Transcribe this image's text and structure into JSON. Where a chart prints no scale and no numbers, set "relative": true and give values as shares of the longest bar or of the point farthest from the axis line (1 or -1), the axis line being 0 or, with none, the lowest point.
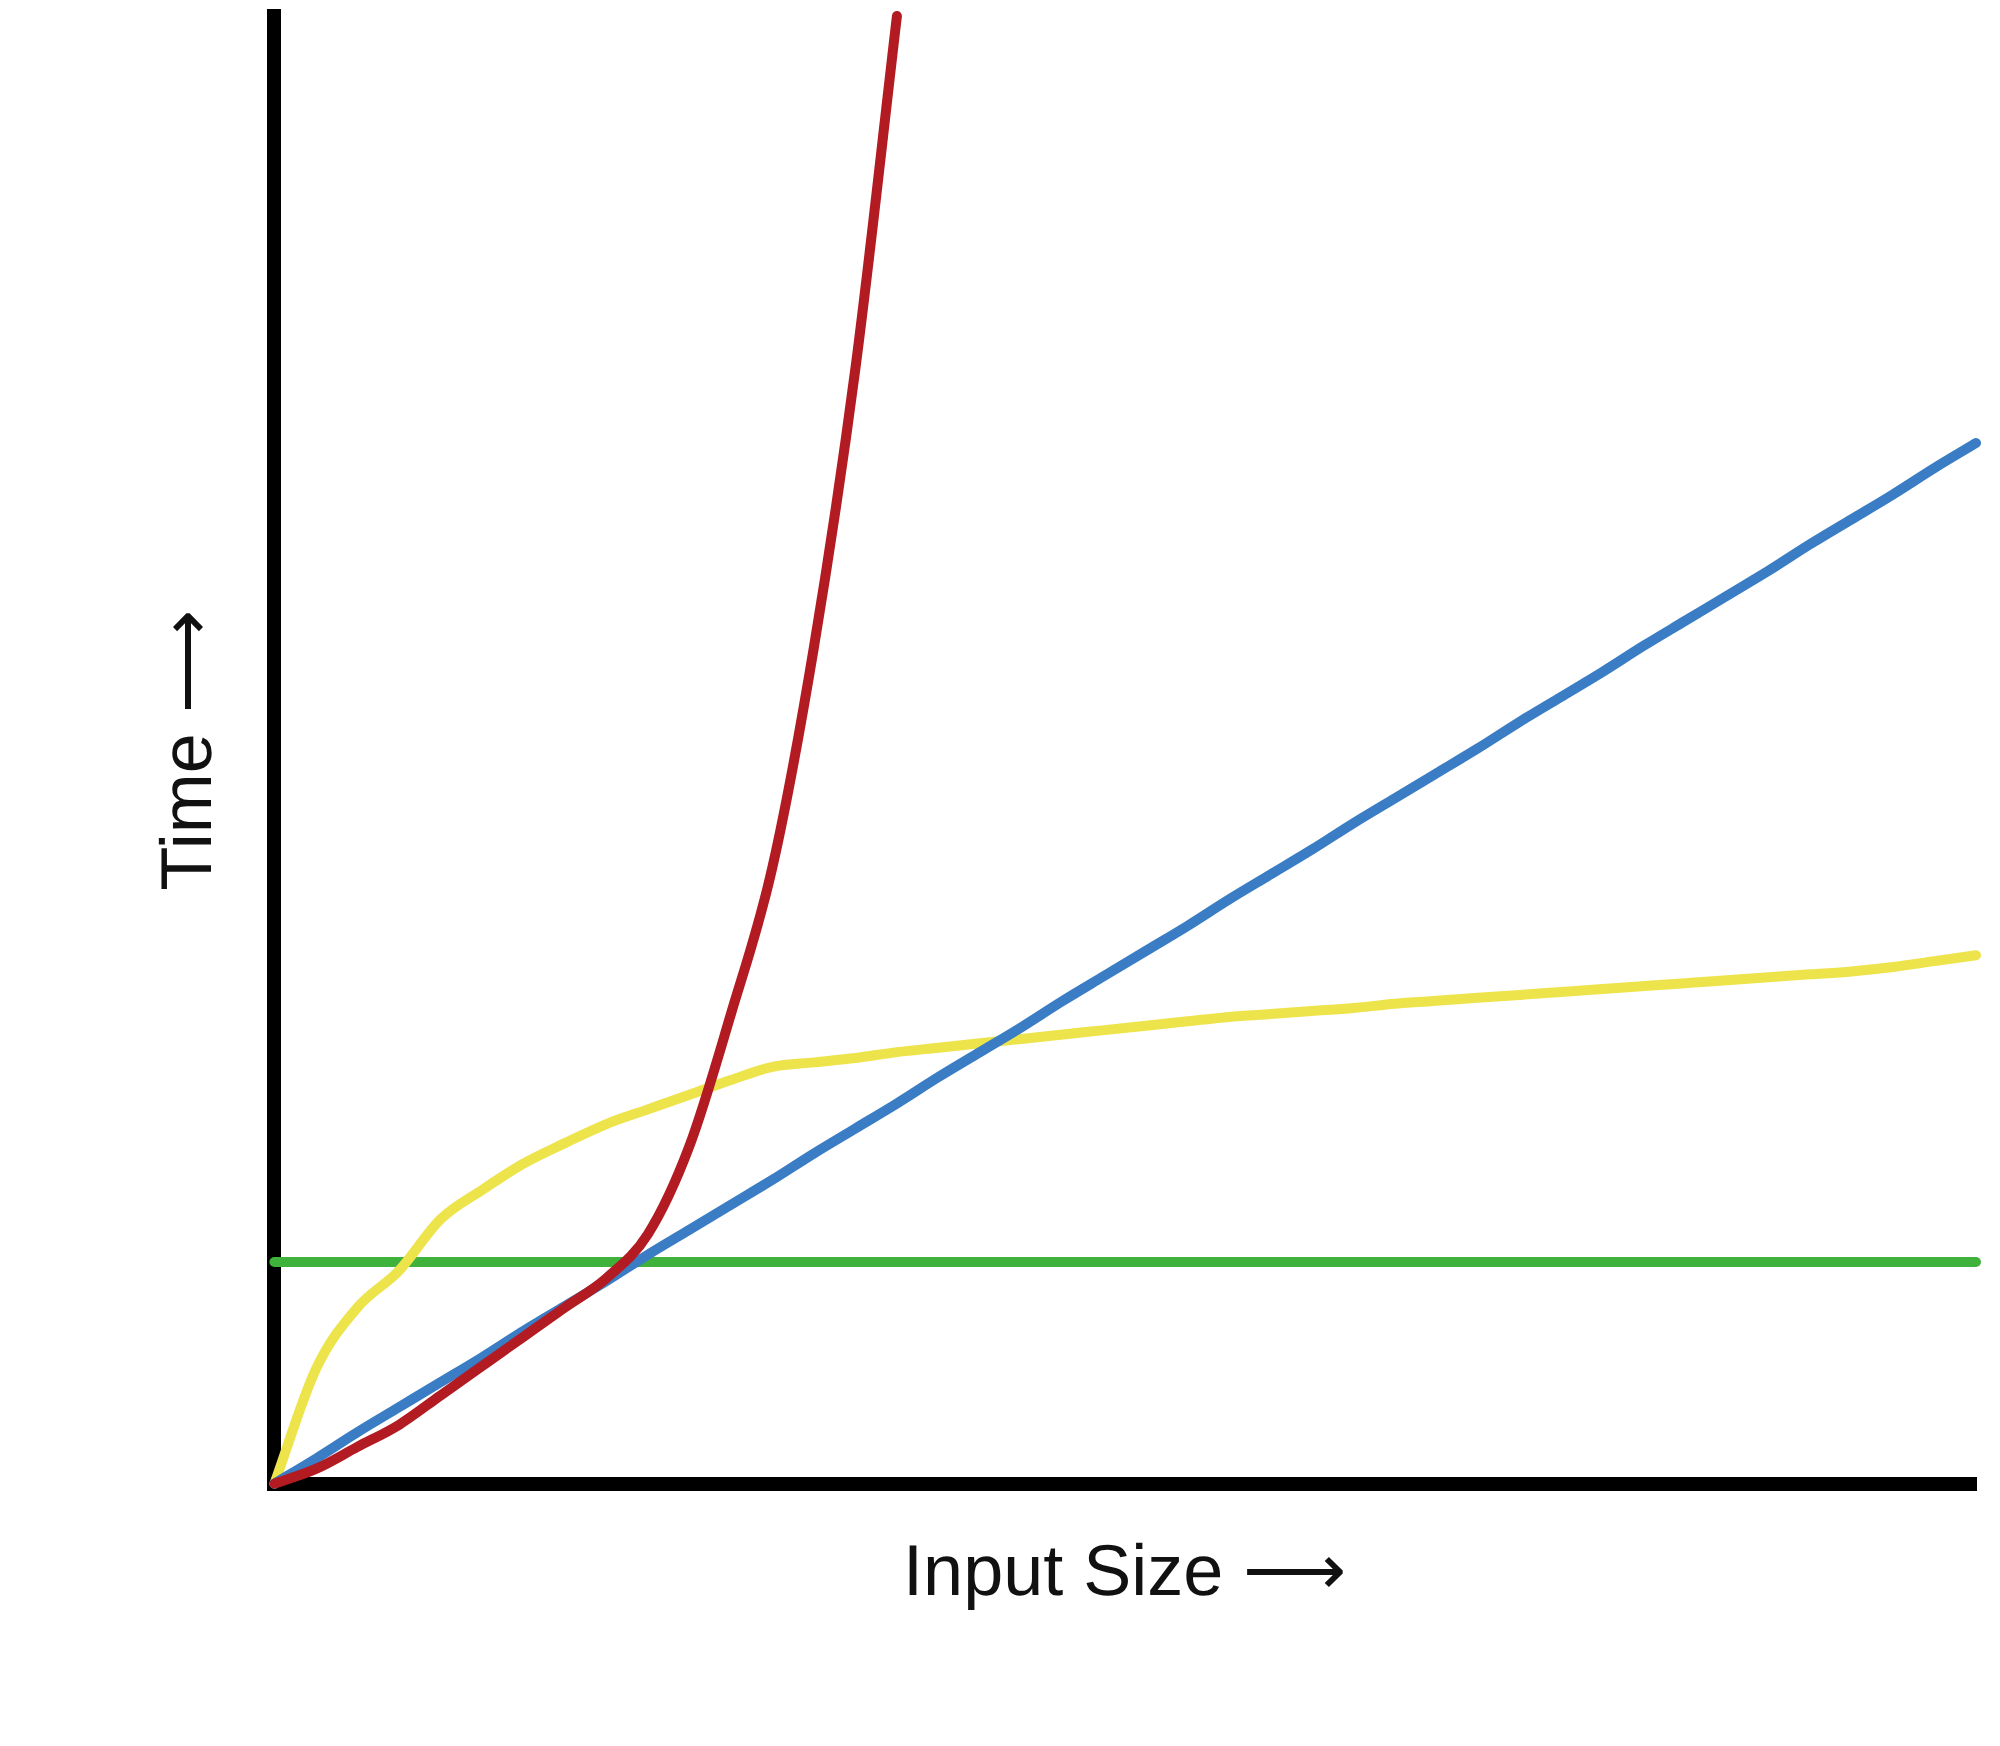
{
  "chart_data": {
    "type": "line",
    "relative": true,
    "xlabel": "Input Size ⟶",
    "ylabel": "Time ⟶",
    "categories": [
      null,
      null,
      null,
      null,
      null,
      null,
      null,
      null,
      null,
      null,
      null,
      null,
      null,
      null,
      null,
      null,
      null,
      null,
      null,
      null,
      null,
      null,
      null,
      null,
      null,
      null,
      null,
      null,
      null,
      null,
      null,
      null,
      null,
      null,
      null,
      null,
      null,
      null,
      null,
      null,
      null,
      null
    ],
    "series": [
      {
        "color": "#b31b23",
        "values": [
          0,
          0.01,
          0.025,
          0.04,
          0.06,
          0.08,
          0.1,
          0.12,
          0.14,
          0.17,
          0.23,
          0.32,
          0.42,
          0.57,
          0.76,
          1,
          null,
          null,
          null,
          null,
          null,
          null,
          null,
          null,
          null,
          null,
          null,
          null,
          null,
          null,
          null,
          null,
          null,
          null,
          null,
          null,
          null,
          null,
          null,
          null,
          null,
          null
        ]
      },
      {
        "color": "#3a7dc4",
        "values": [
          0,
          0.017,
          0.035,
          0.052,
          0.069,
          0.086,
          0.104,
          0.121,
          0.138,
          0.156,
          0.173,
          0.19,
          0.207,
          0.225,
          0.242,
          0.259,
          0.277,
          0.294,
          0.311,
          0.329,
          0.346,
          0.363,
          0.38,
          0.398,
          0.415,
          0.432,
          0.45,
          0.467,
          0.484,
          0.501,
          0.519,
          0.536,
          0.553,
          0.571,
          0.588,
          0.605,
          0.622,
          0.64,
          0.657,
          0.674,
          0.692,
          0.709
        ]
      },
      {
        "color": "#ede44c",
        "values": [
          0,
          0.078,
          0.12,
          0.145,
          0.18,
          0.2,
          0.218,
          0.232,
          0.245,
          0.255,
          0.265,
          0.275,
          0.284,
          0.287,
          0.29,
          0.294,
          0.297,
          0.3,
          0.303,
          0.306,
          0.309,
          0.312,
          0.315,
          0.318,
          0.32,
          0.322,
          0.324,
          0.327,
          0.329,
          0.331,
          0.333,
          0.335,
          0.337,
          0.339,
          0.341,
          0.343,
          0.345,
          0.347,
          0.349,
          0.352,
          0.356,
          0.36
        ]
      },
      {
        "color": "#3fb23c",
        "values": [
          0.151,
          0.151,
          0.151,
          0.151,
          0.151,
          0.151,
          0.151,
          0.151,
          0.151,
          0.151,
          0.151,
          0.151,
          0.151,
          0.151,
          0.151,
          0.151,
          0.151,
          0.151,
          0.151,
          0.151,
          0.151,
          0.151,
          0.151,
          0.151,
          0.151,
          0.151,
          0.151,
          0.151,
          0.151,
          0.151,
          0.151,
          0.151,
          0.151,
          0.151,
          0.151,
          0.151,
          0.151,
          0.151,
          0.151,
          0.151,
          0.151,
          0.151
        ]
      }
    ]
  }
}
